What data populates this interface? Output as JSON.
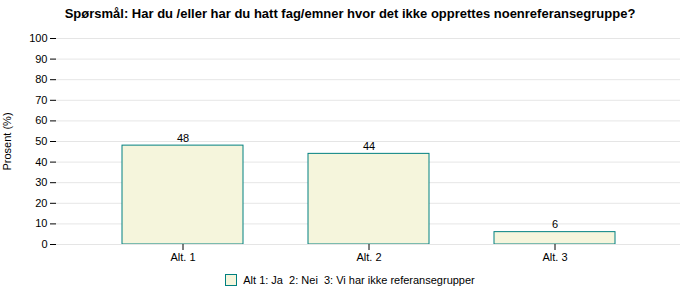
{
  "chart_data": {
    "type": "bar",
    "title": "Spørsmål: Har du /eller har du hatt fag/emner hvor det ikke opprettes noenreferansegruppe?",
    "categories": [
      "Alt. 1",
      "Alt. 2",
      "Alt. 3"
    ],
    "series": [
      {
        "name": "Alt 1: Ja  2: Nei  3: Vi har ikke referansegrupper",
        "color": "#f5f5dc",
        "values": [
          48,
          44,
          6
        ]
      }
    ],
    "ylabel": "Prosent (%)",
    "ylim": [
      0,
      100
    ],
    "yticks": [
      0,
      10,
      20,
      30,
      40,
      50,
      60,
      70,
      80,
      90,
      100
    ],
    "grid": true,
    "legend": "bottom",
    "data_labels": true
  }
}
